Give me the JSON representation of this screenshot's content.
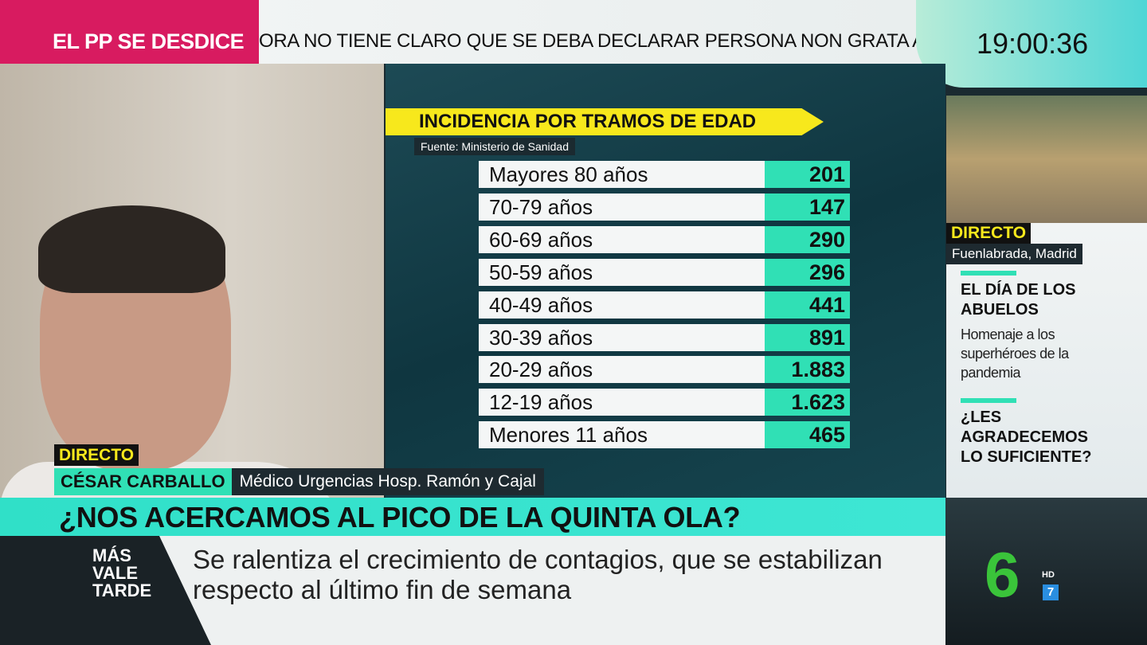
{
  "ticker": {
    "tag": "EL PP SE DESDICE",
    "text": "ORA NO TIENE CLARO QUE SE DEBA DECLARAR PERSONA NON GRATA AL LÍDE"
  },
  "clock": "19:00:36",
  "chart_data": {
    "type": "table",
    "title": "INCIDENCIA POR TRAMOS DE EDAD",
    "source": "Fuente: Ministerio de Sanidad",
    "rows": [
      {
        "label": "Mayores 80 años",
        "value": "201"
      },
      {
        "label": "70-79 años",
        "value": "147"
      },
      {
        "label": "60-69 años",
        "value": "290"
      },
      {
        "label": "50-59 años",
        "value": "296"
      },
      {
        "label": "40-49 años",
        "value": "441"
      },
      {
        "label": "30-39 años",
        "value": "891"
      },
      {
        "label": "20-29 años",
        "value": "1.883"
      },
      {
        "label": "12-19 años",
        "value": "1.623"
      },
      {
        "label": "Menores 11 años",
        "value": "465"
      }
    ]
  },
  "guest": {
    "live": "DIRECTO",
    "name": "CÉSAR CARBALLO",
    "role": "Médico Urgencias Hosp. Ramón y Cajal"
  },
  "side": {
    "live": "DIRECTO",
    "location": "Fuenlabrada, Madrid",
    "story1_title": "EL DÍA DE LOS ABUELOS",
    "story1_sub": "Homenaje a los superhéroes de la pandemia",
    "story2_title": "¿LES AGRADECEMOS LO SUFICIENTE?"
  },
  "headline": "¿NOS ACERCAMOS AL PICO DE LA QUINTA OLA?",
  "subtitle": "Se ralentiza el crecimiento de contagios, que se estabilizan respecto al último fin de semana",
  "show_logo": {
    "l1": "MÁS",
    "l2": "VALE",
    "l3": "TARDE"
  },
  "channel": {
    "logo": "6",
    "hd": "HD",
    "sub": "7"
  },
  "colors": {
    "accent": "#30e0b5",
    "ticker_tag": "#d81b60",
    "title_yellow": "#f7e81c"
  }
}
